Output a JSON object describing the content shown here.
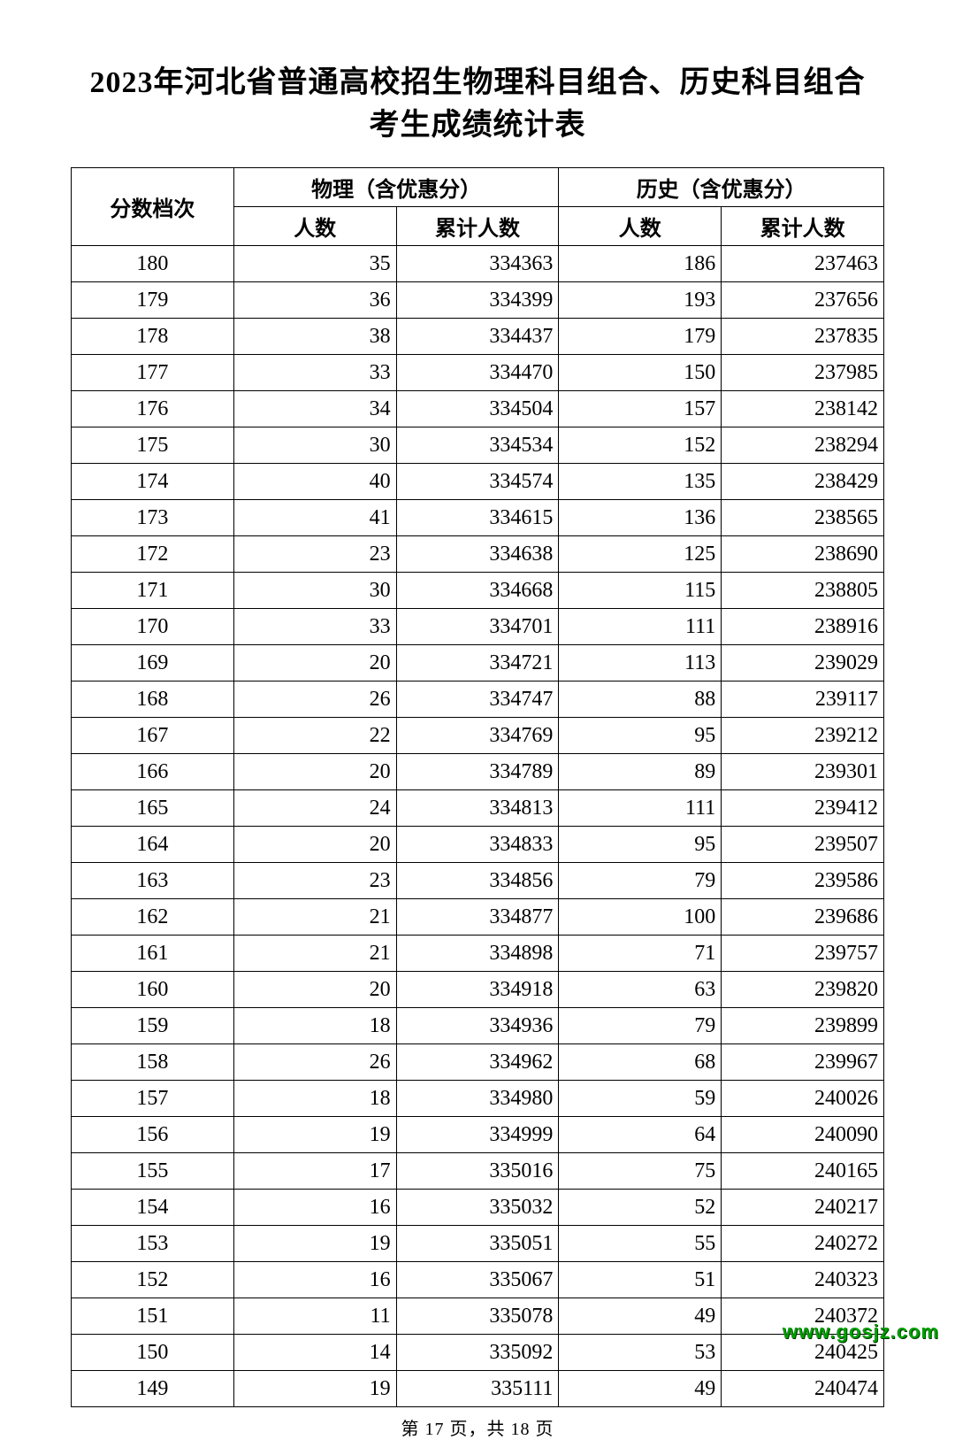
{
  "title_line1": "2023年河北省普通高校招生物理科目组合、历史科目组合",
  "title_line2": "考生成绩统计表",
  "header": {
    "score": "分数档次",
    "group_physics": "物理（含优惠分）",
    "group_history": "历史（含优惠分）",
    "count": "人数",
    "cumulative": "累计人数"
  },
  "footer": "第 17 页，共 18 页",
  "watermark": "www.gosjz.com",
  "table": {
    "type": "table",
    "columns": [
      "分数档次",
      "物理人数",
      "物理累计人数",
      "历史人数",
      "历史累计人数"
    ],
    "border_color": "#000000",
    "background_color": "#ffffff",
    "text_color": "#000000",
    "header_fontsize": 24,
    "cell_fontsize": 24,
    "score_align": "center",
    "value_align": "right",
    "rows": [
      {
        "score": 180,
        "p_count": 35,
        "p_cum": 334363,
        "h_count": 186,
        "h_cum": 237463
      },
      {
        "score": 179,
        "p_count": 36,
        "p_cum": 334399,
        "h_count": 193,
        "h_cum": 237656
      },
      {
        "score": 178,
        "p_count": 38,
        "p_cum": 334437,
        "h_count": 179,
        "h_cum": 237835
      },
      {
        "score": 177,
        "p_count": 33,
        "p_cum": 334470,
        "h_count": 150,
        "h_cum": 237985
      },
      {
        "score": 176,
        "p_count": 34,
        "p_cum": 334504,
        "h_count": 157,
        "h_cum": 238142
      },
      {
        "score": 175,
        "p_count": 30,
        "p_cum": 334534,
        "h_count": 152,
        "h_cum": 238294
      },
      {
        "score": 174,
        "p_count": 40,
        "p_cum": 334574,
        "h_count": 135,
        "h_cum": 238429
      },
      {
        "score": 173,
        "p_count": 41,
        "p_cum": 334615,
        "h_count": 136,
        "h_cum": 238565
      },
      {
        "score": 172,
        "p_count": 23,
        "p_cum": 334638,
        "h_count": 125,
        "h_cum": 238690
      },
      {
        "score": 171,
        "p_count": 30,
        "p_cum": 334668,
        "h_count": 115,
        "h_cum": 238805
      },
      {
        "score": 170,
        "p_count": 33,
        "p_cum": 334701,
        "h_count": 111,
        "h_cum": 238916
      },
      {
        "score": 169,
        "p_count": 20,
        "p_cum": 334721,
        "h_count": 113,
        "h_cum": 239029
      },
      {
        "score": 168,
        "p_count": 26,
        "p_cum": 334747,
        "h_count": 88,
        "h_cum": 239117
      },
      {
        "score": 167,
        "p_count": 22,
        "p_cum": 334769,
        "h_count": 95,
        "h_cum": 239212
      },
      {
        "score": 166,
        "p_count": 20,
        "p_cum": 334789,
        "h_count": 89,
        "h_cum": 239301
      },
      {
        "score": 165,
        "p_count": 24,
        "p_cum": 334813,
        "h_count": 111,
        "h_cum": 239412
      },
      {
        "score": 164,
        "p_count": 20,
        "p_cum": 334833,
        "h_count": 95,
        "h_cum": 239507
      },
      {
        "score": 163,
        "p_count": 23,
        "p_cum": 334856,
        "h_count": 79,
        "h_cum": 239586
      },
      {
        "score": 162,
        "p_count": 21,
        "p_cum": 334877,
        "h_count": 100,
        "h_cum": 239686
      },
      {
        "score": 161,
        "p_count": 21,
        "p_cum": 334898,
        "h_count": 71,
        "h_cum": 239757
      },
      {
        "score": 160,
        "p_count": 20,
        "p_cum": 334918,
        "h_count": 63,
        "h_cum": 239820
      },
      {
        "score": 159,
        "p_count": 18,
        "p_cum": 334936,
        "h_count": 79,
        "h_cum": 239899
      },
      {
        "score": 158,
        "p_count": 26,
        "p_cum": 334962,
        "h_count": 68,
        "h_cum": 239967
      },
      {
        "score": 157,
        "p_count": 18,
        "p_cum": 334980,
        "h_count": 59,
        "h_cum": 240026
      },
      {
        "score": 156,
        "p_count": 19,
        "p_cum": 334999,
        "h_count": 64,
        "h_cum": 240090
      },
      {
        "score": 155,
        "p_count": 17,
        "p_cum": 335016,
        "h_count": 75,
        "h_cum": 240165
      },
      {
        "score": 154,
        "p_count": 16,
        "p_cum": 335032,
        "h_count": 52,
        "h_cum": 240217
      },
      {
        "score": 153,
        "p_count": 19,
        "p_cum": 335051,
        "h_count": 55,
        "h_cum": 240272
      },
      {
        "score": 152,
        "p_count": 16,
        "p_cum": 335067,
        "h_count": 51,
        "h_cum": 240323
      },
      {
        "score": 151,
        "p_count": 11,
        "p_cum": 335078,
        "h_count": 49,
        "h_cum": 240372
      },
      {
        "score": 150,
        "p_count": 14,
        "p_cum": 335092,
        "h_count": 53,
        "h_cum": 240425
      },
      {
        "score": 149,
        "p_count": 19,
        "p_cum": 335111,
        "h_count": 49,
        "h_cum": 240474
      }
    ]
  }
}
